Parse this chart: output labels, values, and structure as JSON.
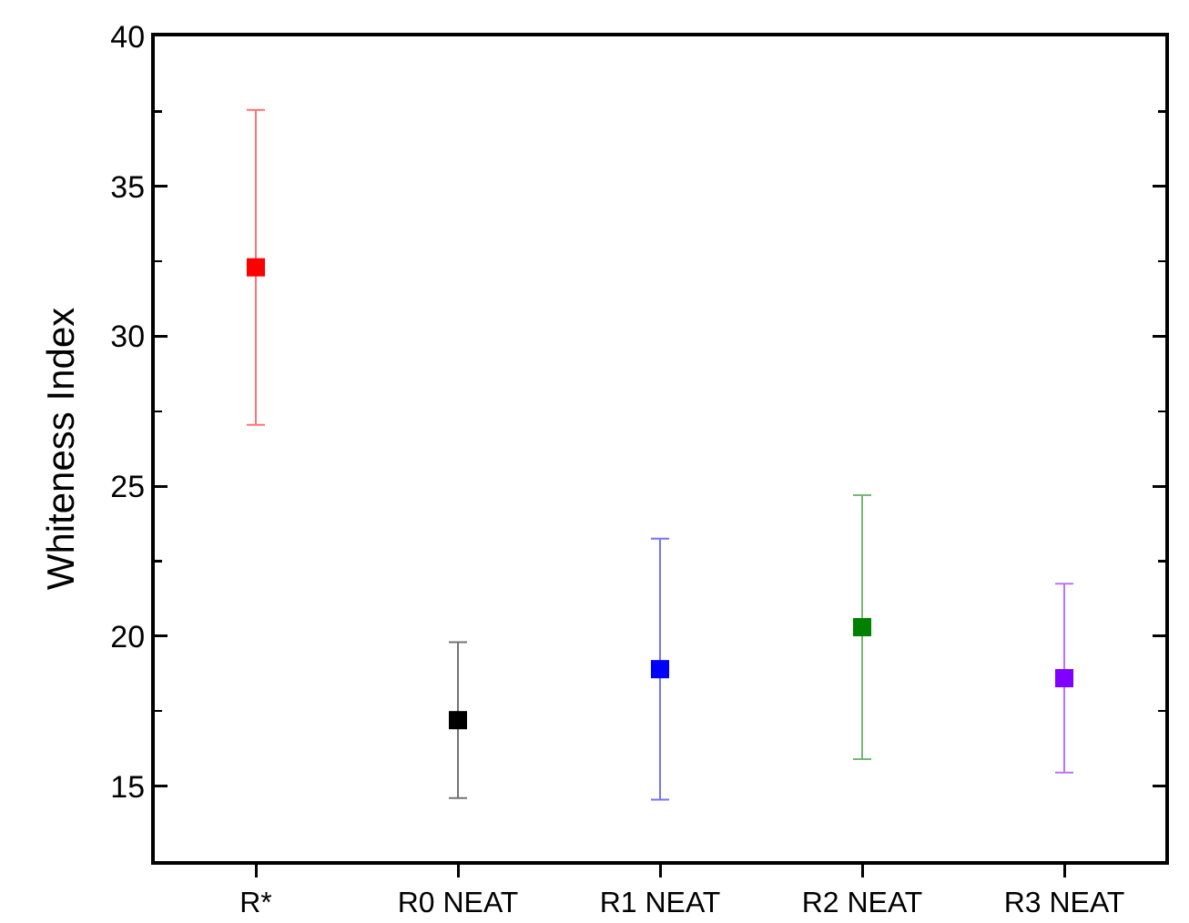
{
  "chart_data": {
    "type": "scatter",
    "ylabel": "Whiteness Index",
    "categories": [
      "R*",
      "R0 NEAT",
      "R1 NEAT",
      "R2 NEAT",
      "R3 NEAT"
    ],
    "values": [
      32.3,
      17.2,
      18.9,
      20.3,
      18.6
    ],
    "colors": [
      "#ff0000",
      "#000000",
      "#0000ff",
      "#008000",
      "#8000ff"
    ],
    "errors": [
      5.25,
      2.6,
      4.35,
      4.4,
      3.15
    ],
    "ylim": [
      12.5,
      40
    ],
    "yticks": [
      15,
      {
        "value": 17.5,
        "label": null
      },
      20,
      {
        "value": 22.5,
        "label": null
      },
      25,
      {
        "value": 27.5,
        "label": null
      },
      30,
      {
        "value": 32.5,
        "label": null
      },
      35,
      {
        "value": 37.5,
        "label": null
      },
      40
    ],
    "marker": "square"
  }
}
